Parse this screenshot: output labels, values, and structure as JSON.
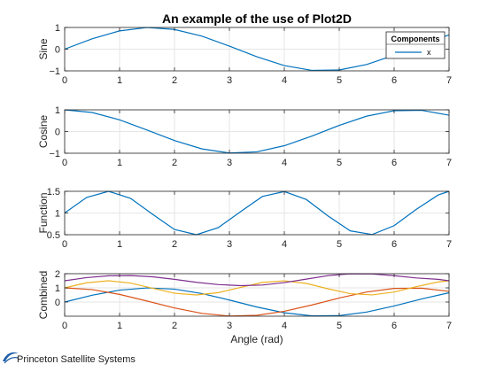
{
  "colors": {
    "series_blue": "#0072BD",
    "series_orange": "#D95319",
    "series_yellow": "#EDB120",
    "series_purple": "#7E2F8E",
    "grid": "#e6e6e6",
    "axes": "#262626"
  },
  "brand": {
    "name": "Princeton Satellite Systems",
    "logo_icon": "princeton-satellite-swoosh-icon"
  },
  "chart_data": [
    {
      "type": "line",
      "title": "An example of the use of Plot2D",
      "ylabel": "Sine",
      "xlabel": "",
      "xlim": [
        0,
        7
      ],
      "ylim": [
        -1,
        1
      ],
      "xticks": [
        "0",
        "1",
        "2",
        "3",
        "4",
        "5",
        "6",
        "7"
      ],
      "yticks": [
        "-1",
        "0",
        "1"
      ],
      "grid": true,
      "legend": {
        "title": "Components",
        "placement": "top-right",
        "entries": [
          "x"
        ]
      },
      "series": [
        {
          "name": "x",
          "color": "#0072BD",
          "x": [
            0,
            0.5,
            1,
            1.5,
            2,
            2.5,
            3,
            3.5,
            4,
            4.5,
            5,
            5.5,
            6,
            6.5,
            7
          ],
          "y": [
            0,
            0.479,
            0.841,
            0.997,
            0.909,
            0.598,
            0.141,
            -0.351,
            -0.757,
            -0.978,
            -0.959,
            -0.706,
            -0.279,
            0.215,
            0.657
          ]
        }
      ]
    },
    {
      "type": "line",
      "title": "",
      "ylabel": "Cosine",
      "xlabel": "",
      "xlim": [
        0,
        7
      ],
      "ylim": [
        -1,
        1
      ],
      "xticks": [
        "0",
        "1",
        "2",
        "3",
        "4",
        "5",
        "6",
        "7"
      ],
      "yticks": [
        "-1",
        "0",
        "1"
      ],
      "grid": true,
      "series": [
        {
          "color": "#0072BD",
          "x": [
            0,
            0.5,
            1,
            1.5,
            2,
            2.5,
            3,
            3.5,
            4,
            4.5,
            5,
            5.5,
            6,
            6.5,
            7
          ],
          "y": [
            1,
            0.878,
            0.54,
            0.071,
            -0.416,
            -0.801,
            -0.99,
            -0.936,
            -0.654,
            -0.211,
            0.284,
            0.709,
            0.96,
            0.977,
            0.754
          ]
        }
      ]
    },
    {
      "type": "line",
      "title": "",
      "ylabel": "Function",
      "xlabel": "",
      "xlim": [
        0,
        7
      ],
      "ylim": [
        0.5,
        1.5
      ],
      "xticks": [
        "0",
        "1",
        "2",
        "3",
        "4",
        "5",
        "6",
        "7"
      ],
      "yticks": [
        "0.5",
        "1",
        "1.5"
      ],
      "grid": true,
      "series": [
        {
          "color": "#0072BD",
          "x": [
            0,
            0.4,
            0.8,
            1.2,
            1.6,
            2.0,
            2.4,
            2.8,
            3.2,
            3.6,
            4.0,
            4.4,
            4.8,
            5.2,
            5.6,
            6.0,
            6.4,
            6.8,
            7.0
          ],
          "y": [
            1,
            1.359,
            1.5,
            1.338,
            0.971,
            0.62,
            0.5,
            0.665,
            1.029,
            1.381,
            1.495,
            1.312,
            0.929,
            0.589,
            0.504,
            0.709,
            1.082,
            1.414,
            1.5
          ]
        }
      ]
    },
    {
      "type": "line",
      "title": "",
      "ylabel": "Combined",
      "xlabel": "Angle (rad)",
      "xlim": [
        0,
        7
      ],
      "ylim": [
        -1,
        2
      ],
      "xticks": [
        "0",
        "1",
        "2",
        "3",
        "4",
        "5",
        "6",
        "7"
      ],
      "yticks": [
        "0",
        "1",
        "2"
      ],
      "grid": true,
      "series": [
        {
          "color": "#0072BD",
          "x": [
            0,
            0.5,
            1,
            1.5,
            2,
            2.5,
            3,
            3.5,
            4,
            4.5,
            5,
            5.5,
            6,
            6.5,
            7
          ],
          "y": [
            0,
            0.479,
            0.841,
            0.997,
            0.909,
            0.598,
            0.141,
            -0.351,
            -0.757,
            -0.978,
            -0.959,
            -0.706,
            -0.279,
            0.215,
            0.657
          ]
        },
        {
          "color": "#D95319",
          "x": [
            0,
            0.5,
            1,
            1.5,
            2,
            2.5,
            3,
            3.5,
            4,
            4.5,
            5,
            5.5,
            6,
            6.5,
            7
          ],
          "y": [
            1,
            0.878,
            0.54,
            0.071,
            -0.416,
            -0.801,
            -0.99,
            -0.936,
            -0.654,
            -0.211,
            0.284,
            0.709,
            0.96,
            0.977,
            0.754
          ]
        },
        {
          "color": "#EDB120",
          "x": [
            0,
            0.4,
            0.8,
            1.2,
            1.6,
            2.0,
            2.4,
            2.8,
            3.2,
            3.6,
            4.0,
            4.4,
            4.8,
            5.2,
            5.6,
            6.0,
            6.4,
            6.8,
            7.0
          ],
          "y": [
            1,
            1.359,
            1.5,
            1.338,
            0.971,
            0.62,
            0.5,
            0.665,
            1.029,
            1.381,
            1.495,
            1.312,
            0.929,
            0.589,
            0.504,
            0.709,
            1.082,
            1.414,
            1.5
          ]
        },
        {
          "color": "#7E2F8E",
          "x": [
            0,
            0.4,
            0.8,
            1.2,
            1.6,
            2.0,
            2.4,
            2.8,
            3.2,
            3.6,
            4.0,
            4.4,
            4.8,
            5.2,
            5.6,
            6.0,
            6.4,
            6.8,
            7.0
          ],
          "y": [
            1.5,
            1.724,
            1.85,
            1.868,
            1.782,
            1.6,
            1.391,
            1.232,
            1.158,
            1.2,
            1.37,
            1.618,
            1.862,
            1.993,
            1.982,
            1.86,
            1.7,
            1.6,
            1.5
          ]
        }
      ]
    }
  ]
}
